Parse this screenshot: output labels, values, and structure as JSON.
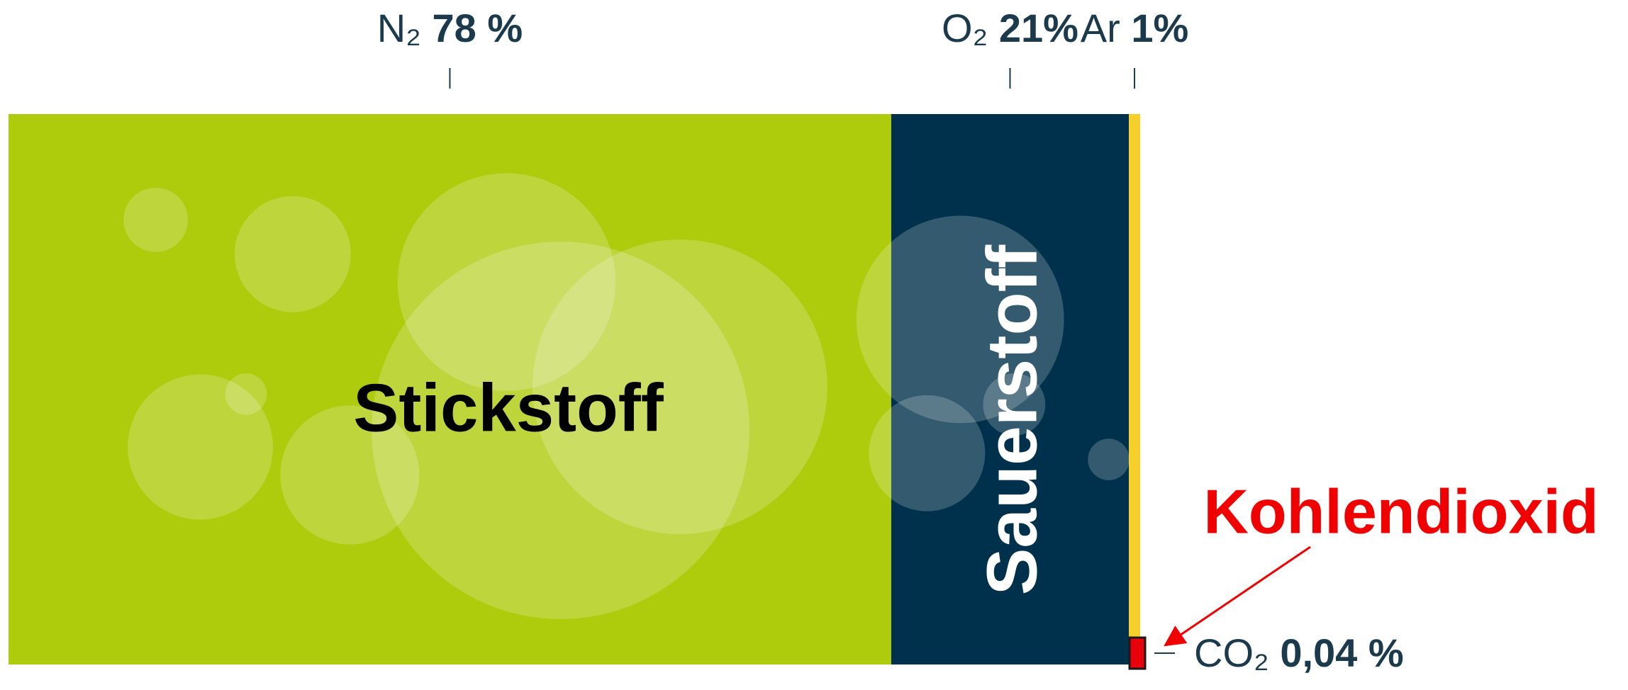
{
  "chart_data": {
    "type": "stacked-bar",
    "xlim": [
      0,
      100
    ],
    "series": [
      {
        "name": "N₂",
        "color": "#aecb0c",
        "values": [
          78
        ],
        "value_labels": [
          "78 %"
        ]
      },
      {
        "name": "O₂",
        "color": "#00314c",
        "values": [
          21
        ],
        "value_labels": [
          "21%"
        ]
      },
      {
        "name": "Ar",
        "color": "#f5d02a",
        "values": [
          1
        ],
        "value_labels": [
          "1%"
        ]
      },
      {
        "name": "CO₂",
        "color": "#e8000b",
        "values": [
          0.04
        ],
        "value_labels": [
          "0,04 %"
        ]
      }
    ],
    "inside_labels": [
      "Stickstoff",
      "Sauerstoff"
    ],
    "annotation": "Kohlendioxid"
  }
}
